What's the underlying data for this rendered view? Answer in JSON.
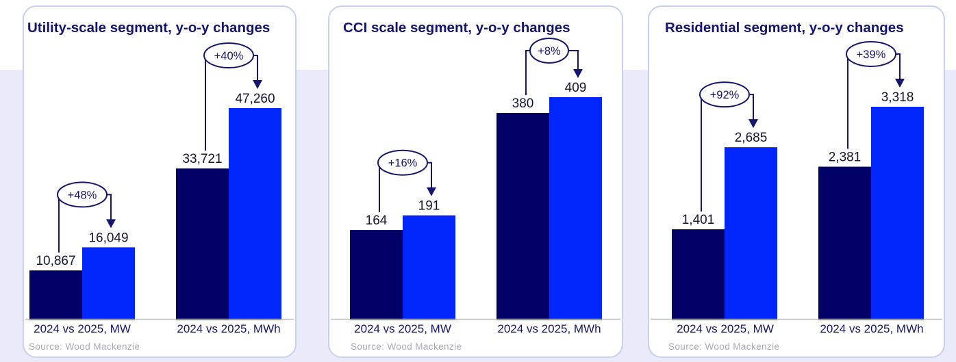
{
  "colors": {
    "bar_2024": "#000066",
    "bar_2025": "#0026FB",
    "title_text": "#15156B",
    "value_text": "#14142F",
    "annotation": "#15156B",
    "axis_line": "#BFBFBF",
    "source_text": "#A9A9B2",
    "panel_border": "#C7CFF3",
    "background_band": "#E9EBFA"
  },
  "chart_data": [
    {
      "type": "bar",
      "title": "Utility-scale segment, y-o-y changes",
      "source": "Source: Wood Mackenzie",
      "series_names": [
        "2024",
        "2025"
      ],
      "grid": false,
      "legend": "none",
      "groups": [
        {
          "label": "2024 vs 2025, MW",
          "bars": [
            {
              "name": "2024",
              "value": 10867,
              "label": "10,867"
            },
            {
              "name": "2025",
              "value": 16049,
              "label": "16,049"
            }
          ],
          "pct_change": 48,
          "pct_change_label": "+48%"
        },
        {
          "label": "2024 vs 2025, MWh",
          "bars": [
            {
              "name": "2024",
              "value": 33721,
              "label": "33,721"
            },
            {
              "name": "2025",
              "value": 47260,
              "label": "47,260"
            }
          ],
          "pct_change": 40,
          "pct_change_label": "+40%"
        }
      ]
    },
    {
      "type": "bar",
      "title": "CCI scale segment, y-o-y changes",
      "source": "Source: Wood Mackenzie",
      "series_names": [
        "2024",
        "2025"
      ],
      "grid": false,
      "legend": "none",
      "groups": [
        {
          "label": "2024 vs 2025, MW",
          "bars": [
            {
              "name": "2024",
              "value": 164,
              "label": "164"
            },
            {
              "name": "2025",
              "value": 191,
              "label": "191"
            }
          ],
          "pct_change": 16,
          "pct_change_label": "+16%"
        },
        {
          "label": "2024 vs 2025, MWh",
          "bars": [
            {
              "name": "2024",
              "value": 380,
              "label": "380"
            },
            {
              "name": "2025",
              "value": 409,
              "label": "409"
            }
          ],
          "pct_change": 8,
          "pct_change_label": "+8%"
        }
      ]
    },
    {
      "type": "bar",
      "title": "Residential segment, y-o-y changes",
      "source": "Source: Wood Mackenzie",
      "series_names": [
        "2024",
        "2025"
      ],
      "grid": false,
      "legend": "none",
      "groups": [
        {
          "label": "2024 vs 2025, MW",
          "bars": [
            {
              "name": "2024",
              "value": 1401,
              "label": "1,401"
            },
            {
              "name": "2025",
              "value": 2685,
              "label": "2,685"
            }
          ],
          "pct_change": 92,
          "pct_change_label": "+92%"
        },
        {
          "label": "2024 vs 2025, MWh",
          "bars": [
            {
              "name": "2024",
              "value": 2381,
              "label": "2,381"
            },
            {
              "name": "2025",
              "value": 3318,
              "label": "3,318"
            }
          ],
          "pct_change": 39,
          "pct_change_label": "+39%"
        }
      ]
    }
  ]
}
